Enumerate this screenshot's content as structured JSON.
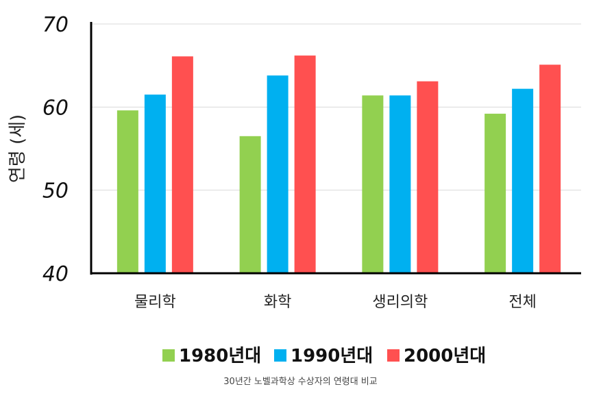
{
  "chart_data": {
    "type": "bar",
    "ylabel": "연령 (세)",
    "ylim": [
      40,
      70
    ],
    "yticks": [
      40,
      50,
      60,
      70
    ],
    "grid": true,
    "categories": [
      "물리학",
      "화학",
      "생리의학",
      "전체"
    ],
    "series": [
      {
        "name": "1980년대",
        "color": "#92d050",
        "values": [
          59.6,
          56.5,
          61.4,
          59.2
        ]
      },
      {
        "name": "1990년대",
        "color": "#00b0f0",
        "values": [
          61.5,
          63.8,
          61.4,
          62.2
        ]
      },
      {
        "name": "2000년대",
        "color": "#ff5050",
        "values": [
          66.1,
          66.2,
          63.1,
          65.1
        ]
      }
    ],
    "legend_position": "bottom"
  },
  "caption": "30년간 노벨과학상 수상자의 연령대 비교"
}
